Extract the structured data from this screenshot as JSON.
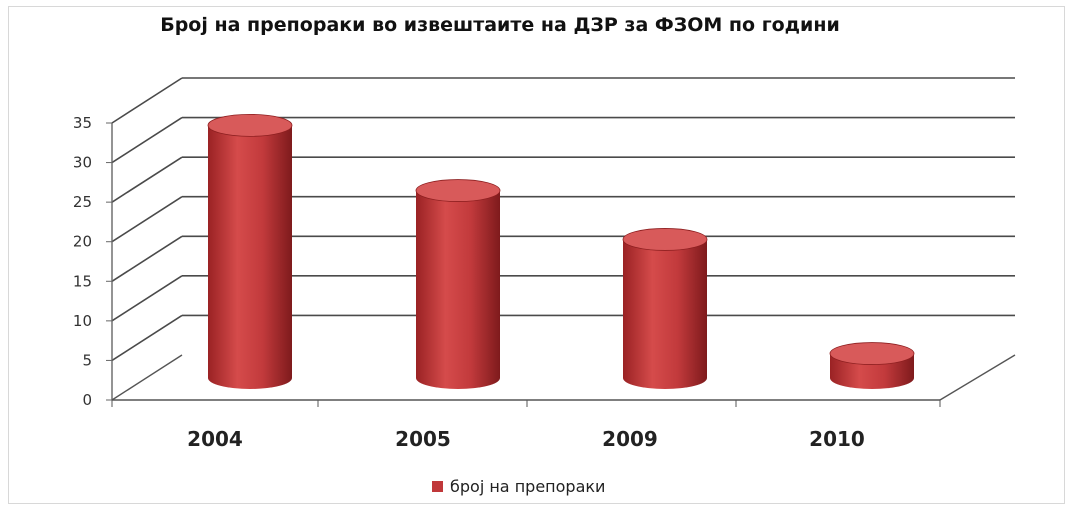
{
  "chart_data": {
    "type": "bar",
    "title": "Број на препораки  во извештаите на ДЗР за ФЗОМ по години",
    "categories": [
      "2004",
      "2005",
      "2009",
      "2010"
    ],
    "series": [
      {
        "name": "број на препораки",
        "values": [
          31,
          23,
          17,
          3
        ]
      }
    ],
    "ylim": [
      0,
      35
    ],
    "yticks": [
      0,
      5,
      10,
      15,
      20,
      25,
      30,
      35
    ],
    "grid": true,
    "legend": "bottom",
    "style": "3d-cylinder",
    "colors": {
      "bar": "#c0383a",
      "bar_dark": "#8e1f20",
      "bar_top": "#d85a5a",
      "grid": "#4a4a4a"
    }
  }
}
